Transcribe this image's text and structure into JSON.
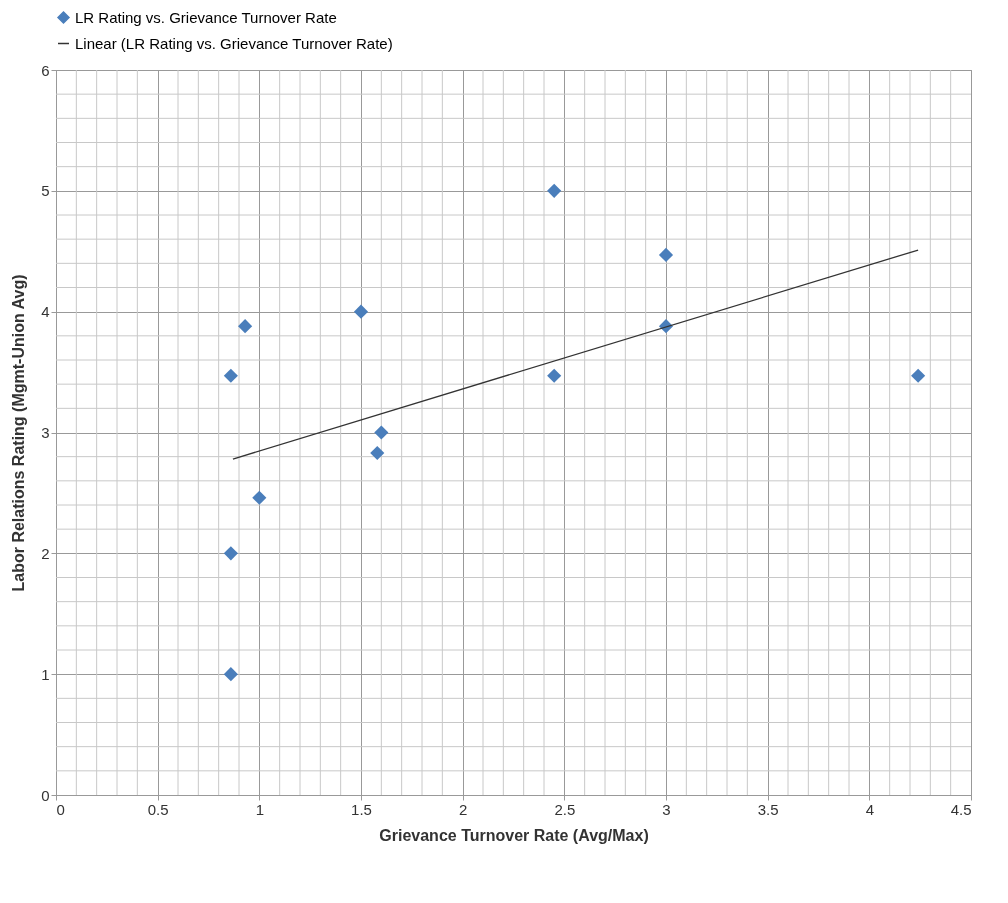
{
  "chart_data": {
    "type": "scatter",
    "xlabel": "Grievance Turnover Rate (Avg/Max)",
    "ylabel": "Labor Relations Rating (Mgmt-Union Avg)",
    "x": [
      0.86,
      0.86,
      0.86,
      0.93,
      1.0,
      1.5,
      1.58,
      1.6,
      2.45,
      2.45,
      3.0,
      3.0,
      4.24
    ],
    "series": [
      {
        "name": "LR Rating vs. Grievance Turnover Rate",
        "color": "#4a7ebb",
        "marker": "diamond",
        "values": [
          1.0,
          2.0,
          3.47,
          3.88,
          2.46,
          4.0,
          2.83,
          3.0,
          5.0,
          3.47,
          4.47,
          3.88,
          3.47
        ]
      },
      {
        "name": "Linear (LR Rating vs. Grievance Turnover Rate)",
        "type": "line",
        "marker": "none",
        "color": "#333333",
        "x": [
          0.87,
          4.24
        ],
        "values": [
          2.78,
          4.51
        ]
      }
    ],
    "xlim": [
      0,
      4.5
    ],
    "xticks": [
      0,
      0.5,
      1,
      1.5,
      2,
      2.5,
      3,
      3.5,
      4,
      4.5
    ],
    "ylim": [
      0,
      6
    ],
    "yticks": [
      0,
      1,
      2,
      3,
      4,
      5,
      6
    ],
    "grid": true,
    "legend": "top"
  }
}
